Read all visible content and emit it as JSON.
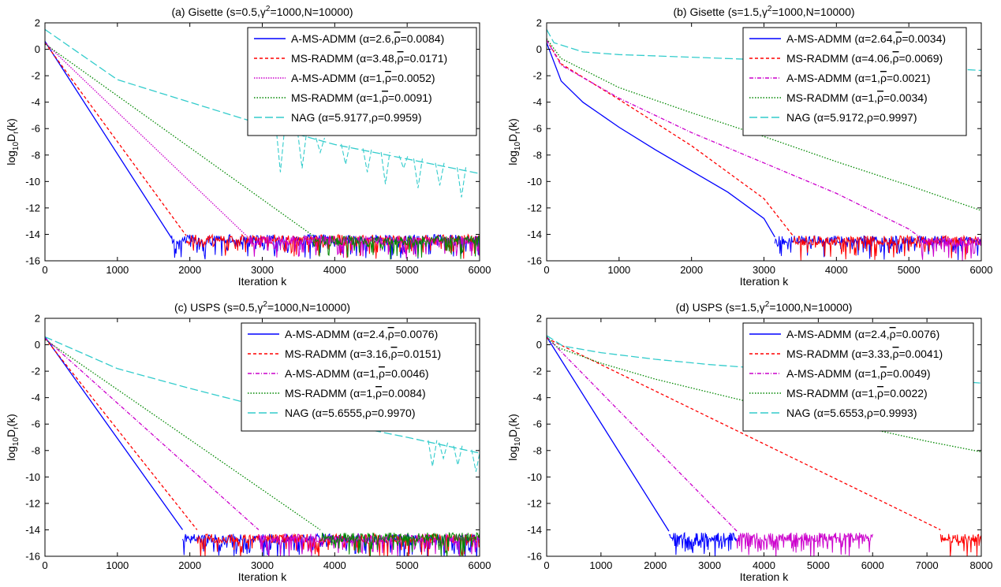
{
  "chart_data": [
    {
      "type": "line",
      "title": "(a) Gisette (s=0.5,γ²=1000,N=10000)",
      "title_parts": [
        "(a) Gisette (s=0.5,γ",
        "2",
        "=1000,N=10000)"
      ],
      "xlabel": "Iteration k",
      "ylabel": "log10Dr(k)",
      "xlim": [
        0,
        6000
      ],
      "ylim": [
        -16,
        2
      ],
      "xticks": [
        0,
        1000,
        2000,
        3000,
        4000,
        5000,
        6000
      ],
      "yticks": [
        2,
        0,
        -2,
        -4,
        -6,
        -8,
        -10,
        -12,
        -14,
        -16
      ],
      "legend_position": "top-right",
      "grid": false,
      "series": [
        {
          "name": "A-MS-ADMM (α=2.6,ρ̄=0.0084)",
          "label_parts": [
            "A-MS-ADMM (α=2.6,",
            "ρ",
            "=0.0084)"
          ],
          "rho_bar": true,
          "color": "#0000ff",
          "dash": "",
          "points": [
            [
              0,
              0.6
            ],
            [
              1750,
              -14.3
            ]
          ],
          "noise_to": 6000,
          "noise_level": -14.5
        },
        {
          "name": "MS-RADMM (α=3.48,ρ̄=0.0171)",
          "label_parts": [
            "MS-RADMM (α=3.48,",
            "ρ",
            "=0.0171)"
          ],
          "rho_bar": true,
          "color": "#ff0000",
          "dash": "4,3",
          "points": [
            [
              0,
              0.5
            ],
            [
              1950,
              -14.1
            ]
          ],
          "noise_to": 6000,
          "noise_level": -14.5
        },
        {
          "name": "A-MS-ADMM (α=1,ρ̄=0.0052)",
          "label_parts": [
            "A-MS-ADMM (α=1,",
            "ρ",
            "=0.0052)"
          ],
          "rho_bar": true,
          "color": "#cc00cc",
          "dash": "1.5,1.5",
          "points": [
            [
              0,
              0.5
            ],
            [
              2800,
              -14.2
            ]
          ],
          "noise_to": 6000,
          "noise_level": -14.6
        },
        {
          "name": "MS-RADMM (α=1,ρ̄=0.0091)",
          "label_parts": [
            "MS-RADMM (α=1,",
            "ρ",
            "=0.0091)"
          ],
          "rho_bar": true,
          "color": "#008800",
          "dash": "1.5,2",
          "points": [
            [
              0,
              0.4
            ],
            [
              3700,
              -14.1
            ]
          ],
          "noise_to": 6000,
          "noise_level": -14.6
        },
        {
          "name": "NAG (α=5.9177,ρ=0.9959)",
          "label_parts": [
            "NAG (α=5.9177,",
            "ρ",
            "=0.9959)"
          ],
          "rho_bar": false,
          "color": "#33cccc",
          "dash": "10,4",
          "points": [
            [
              0,
              1.5
            ],
            [
              1000,
              -2.3
            ],
            [
              2000,
              -4.0
            ],
            [
              3000,
              -5.7
            ],
            [
              4000,
              -7.2
            ],
            [
              5000,
              -8.3
            ],
            [
              6000,
              -9.4
            ]
          ],
          "spikes": [
            [
              3250,
              -9.3
            ],
            [
              3550,
              -9.0
            ],
            [
              3800,
              -7.8
            ],
            [
              4150,
              -8.7
            ],
            [
              4450,
              -9.3
            ],
            [
              4700,
              -10.2
            ],
            [
              4950,
              -9.0
            ],
            [
              5150,
              -10.5
            ],
            [
              5450,
              -10.3
            ],
            [
              5750,
              -11.2
            ]
          ]
        }
      ]
    },
    {
      "type": "line",
      "title": "(b) Gisette (s=1.5,γ²=1000,N=10000)",
      "title_parts": [
        "(b) Gisette (s=1.5,γ",
        "2",
        "=1000,N=10000)"
      ],
      "xlabel": "Iteration k",
      "ylabel": "log10Dr(k)",
      "xlim": [
        0,
        6000
      ],
      "ylim": [
        -16,
        2
      ],
      "xticks": [
        0,
        1000,
        2000,
        3000,
        4000,
        5000,
        6000
      ],
      "yticks": [
        2,
        0,
        -2,
        -4,
        -6,
        -8,
        -10,
        -12,
        -14,
        -16
      ],
      "legend_position": "top-right",
      "grid": false,
      "series": [
        {
          "name": "A-MS-ADMM (α=2.64,ρ̄=0.0034)",
          "label_parts": [
            "A-MS-ADMM (α=2.64,",
            "ρ",
            "=0.0034)"
          ],
          "rho_bar": true,
          "color": "#0000ff",
          "dash": "",
          "points": [
            [
              0,
              0.5
            ],
            [
              200,
              -2.4
            ],
            [
              500,
              -4.0
            ],
            [
              1000,
              -5.9
            ],
            [
              1500,
              -7.6
            ],
            [
              2000,
              -9.2
            ],
            [
              2500,
              -10.8
            ],
            [
              3000,
              -12.8
            ],
            [
              3150,
              -14.2
            ]
          ],
          "noise_to": 6000,
          "noise_level": -14.6
        },
        {
          "name": "MS-RADMM (α=4.06,ρ̄=0.0069)",
          "label_parts": [
            "MS-RADMM (α=4.06,",
            "ρ",
            "=0.0069)"
          ],
          "rho_bar": true,
          "color": "#ff0000",
          "dash": "4,3",
          "points": [
            [
              0,
              0.7
            ],
            [
              200,
              -1.1
            ],
            [
              1000,
              -3.8
            ],
            [
              2000,
              -7.3
            ],
            [
              3000,
              -11.3
            ],
            [
              3400,
              -14.1
            ]
          ],
          "noise_to": 6000,
          "noise_level": -14.6
        },
        {
          "name": "A-MS-ADMM (α=1,ρ̄=0.0021)",
          "label_parts": [
            "A-MS-ADMM (α=1,",
            "ρ",
            "=0.0021)"
          ],
          "rho_bar": true,
          "color": "#cc00cc",
          "dash": "5,2,1,2",
          "points": [
            [
              0,
              0.7
            ],
            [
              200,
              -1.2
            ],
            [
              1000,
              -3.7
            ],
            [
              2000,
              -6.3
            ],
            [
              3000,
              -8.6
            ],
            [
              4000,
              -10.9
            ],
            [
              5000,
              -13.6
            ],
            [
              5150,
              -14.2
            ]
          ],
          "noise_to": 6000,
          "noise_level": -14.7
        },
        {
          "name": "MS-RADMM (α=1,ρ̄=0.0034)",
          "label_parts": [
            "MS-RADMM (α=1,",
            "ρ",
            "=0.0034)"
          ],
          "rho_bar": true,
          "color": "#008800",
          "dash": "1.5,2",
          "points": [
            [
              0,
              0.8
            ],
            [
              200,
              -0.7
            ],
            [
              1000,
              -2.9
            ],
            [
              2000,
              -4.8
            ],
            [
              3000,
              -6.6
            ],
            [
              4000,
              -8.5
            ],
            [
              5000,
              -10.3
            ],
            [
              6000,
              -12.2
            ]
          ]
        },
        {
          "name": "NAG (α=5.9172,ρ=0.9997)",
          "label_parts": [
            "NAG (α=5.9172,",
            "ρ",
            "=0.9997)"
          ],
          "rho_bar": false,
          "color": "#33cccc",
          "dash": "10,4",
          "points": [
            [
              0,
              1.5
            ],
            [
              100,
              0.5
            ],
            [
              500,
              -0.2
            ],
            [
              1000,
              -0.4
            ],
            [
              2000,
              -0.6
            ],
            [
              3000,
              -0.8
            ],
            [
              4000,
              -1.0
            ],
            [
              5000,
              -1.3
            ],
            [
              6000,
              -1.6
            ]
          ]
        }
      ]
    },
    {
      "type": "line",
      "title": "(c) USPS (s=0.5,γ²=1000,N=10000)",
      "title_parts": [
        "(c) USPS (s=0.5,γ",
        "2",
        "=1000,N=10000)"
      ],
      "xlabel": "Iteration k",
      "ylabel": "log10Dr(k)",
      "xlim": [
        0,
        6000
      ],
      "ylim": [
        -16,
        2
      ],
      "xticks": [
        0,
        1000,
        2000,
        3000,
        4000,
        5000,
        6000
      ],
      "yticks": [
        2,
        0,
        -2,
        -4,
        -6,
        -8,
        -10,
        -12,
        -14,
        -16
      ],
      "legend_position": "top-right",
      "grid": false,
      "series": [
        {
          "name": "A-MS-ADMM (α=2.4,ρ̄=0.0076)",
          "label_parts": [
            "A-MS-ADMM (α=2.4,",
            "ρ",
            "=0.0076)"
          ],
          "rho_bar": true,
          "color": "#0000ff",
          "dash": "",
          "points": [
            [
              0,
              0.6
            ],
            [
              1900,
              -14.0
            ]
          ],
          "noise_to": 6000,
          "noise_level": -14.8
        },
        {
          "name": "MS-RADMM (α=3.16,ρ̄=0.0151)",
          "label_parts": [
            "MS-RADMM (α=3.16,",
            "ρ",
            "=0.0151)"
          ],
          "rho_bar": true,
          "color": "#ff0000",
          "dash": "4,3",
          "points": [
            [
              0,
              0.5
            ],
            [
              2100,
              -14.0
            ]
          ],
          "noise_to": 6000,
          "noise_level": -14.8
        },
        {
          "name": "A-MS-ADMM (α=1,ρ̄=0.0046)",
          "label_parts": [
            "A-MS-ADMM (α=1,",
            "ρ",
            "=0.0046)"
          ],
          "rho_bar": true,
          "color": "#cc00cc",
          "dash": "5,2,1,2",
          "points": [
            [
              0,
              0.5
            ],
            [
              2950,
              -14.0
            ]
          ],
          "noise_to": 6000,
          "noise_level": -14.8
        },
        {
          "name": "MS-RADMM (α=1,ρ̄=0.0084)",
          "label_parts": [
            "MS-RADMM (α=1,",
            "ρ",
            "=0.0084)"
          ],
          "rho_bar": true,
          "color": "#008800",
          "dash": "1.5,2",
          "points": [
            [
              0,
              0.4
            ],
            [
              3800,
              -14.0
            ]
          ],
          "noise_to": 6000,
          "noise_level": -14.7
        },
        {
          "name": "NAG (α=5.6555,ρ=0.9970)",
          "label_parts": [
            "NAG (α=5.6555,",
            "ρ",
            "=0.9970)"
          ],
          "rho_bar": false,
          "color": "#33cccc",
          "dash": "10,4",
          "points": [
            [
              0,
              0.6
            ],
            [
              1000,
              -1.8
            ],
            [
              2000,
              -3.3
            ],
            [
              3000,
              -4.7
            ],
            [
              4000,
              -5.9
            ],
            [
              5000,
              -7.0
            ],
            [
              6000,
              -8.2
            ]
          ],
          "spikes": [
            [
              5350,
              -9.2
            ],
            [
              5500,
              -8.6
            ],
            [
              5700,
              -9.1
            ],
            [
              5950,
              -9.6
            ]
          ]
        }
      ]
    },
    {
      "type": "line",
      "title": "(d) USPS (s=1.5,γ²=1000,N=10000)",
      "title_parts": [
        "(d) USPS (s=1.5,γ",
        "2",
        "=1000,N=10000)"
      ],
      "xlabel": "Iteration k",
      "ylabel": "log10Dr(k)",
      "xlim": [
        0,
        8000
      ],
      "ylim": [
        -16,
        2
      ],
      "xticks": [
        0,
        1000,
        2000,
        3000,
        4000,
        5000,
        6000,
        7000,
        8000
      ],
      "yticks": [
        2,
        0,
        -2,
        -4,
        -6,
        -8,
        -10,
        -12,
        -14,
        -16
      ],
      "legend_position": "top-right",
      "grid": false,
      "series": [
        {
          "name": "A-MS-ADMM (α=2.4,ρ̄=0.0076)",
          "label_parts": [
            "A-MS-ADMM (α=2.4,",
            "ρ",
            "=0.0076)"
          ],
          "rho_bar": true,
          "color": "#0000ff",
          "dash": "",
          "points": [
            [
              0,
              0.6
            ],
            [
              2250,
              -14.1
            ]
          ],
          "noise_to": 3500,
          "noise_level": -14.7
        },
        {
          "name": "MS-RADMM (α=3.33,ρ̄=0.0041)",
          "label_parts": [
            "MS-RADMM (α=3.33,",
            "ρ",
            "=0.0041)"
          ],
          "rho_bar": true,
          "color": "#ff0000",
          "dash": "4,3",
          "points": [
            [
              0,
              0.5
            ],
            [
              7250,
              -14.0
            ]
          ],
          "noise_to": 8000,
          "noise_level": -14.8
        },
        {
          "name": "A-MS-ADMM (α=1,ρ̄=0.0049)",
          "label_parts": [
            "A-MS-ADMM (α=1,",
            "ρ",
            "=0.0049)"
          ],
          "rho_bar": true,
          "color": "#cc00cc",
          "dash": "5,2,1,2",
          "points": [
            [
              0,
              0.6
            ],
            [
              3500,
              -14.1
            ]
          ],
          "noise_to": 6000,
          "noise_level": -14.7
        },
        {
          "name": "MS-RADMM (α=1,ρ̄=0.0022)",
          "label_parts": [
            "MS-RADMM (α=1,",
            "ρ",
            "=0.0022)"
          ],
          "rho_bar": true,
          "color": "#008800",
          "dash": "1.5,2",
          "points": [
            [
              0,
              0.6
            ],
            [
              200,
              -0.2
            ],
            [
              1000,
              -1.4
            ],
            [
              2000,
              -2.6
            ],
            [
              3000,
              -3.6
            ],
            [
              4000,
              -4.6
            ],
            [
              5000,
              -5.5
            ],
            [
              6000,
              -6.4
            ],
            [
              7000,
              -7.3
            ],
            [
              8000,
              -8.1
            ]
          ]
        },
        {
          "name": "NAG (α=5.6553,ρ=0.9993)",
          "label_parts": [
            "NAG (α=5.6553,",
            "ρ",
            "=0.9993)"
          ],
          "rho_bar": false,
          "color": "#33cccc",
          "dash": "10,4",
          "points": [
            [
              0,
              0.7
            ],
            [
              300,
              -0.1
            ],
            [
              1000,
              -0.6
            ],
            [
              2000,
              -1.1
            ],
            [
              3000,
              -1.5
            ],
            [
              4000,
              -1.8
            ],
            [
              5000,
              -2.1
            ],
            [
              6000,
              -2.4
            ],
            [
              7000,
              -2.6
            ],
            [
              8000,
              -2.9
            ]
          ]
        }
      ]
    }
  ]
}
